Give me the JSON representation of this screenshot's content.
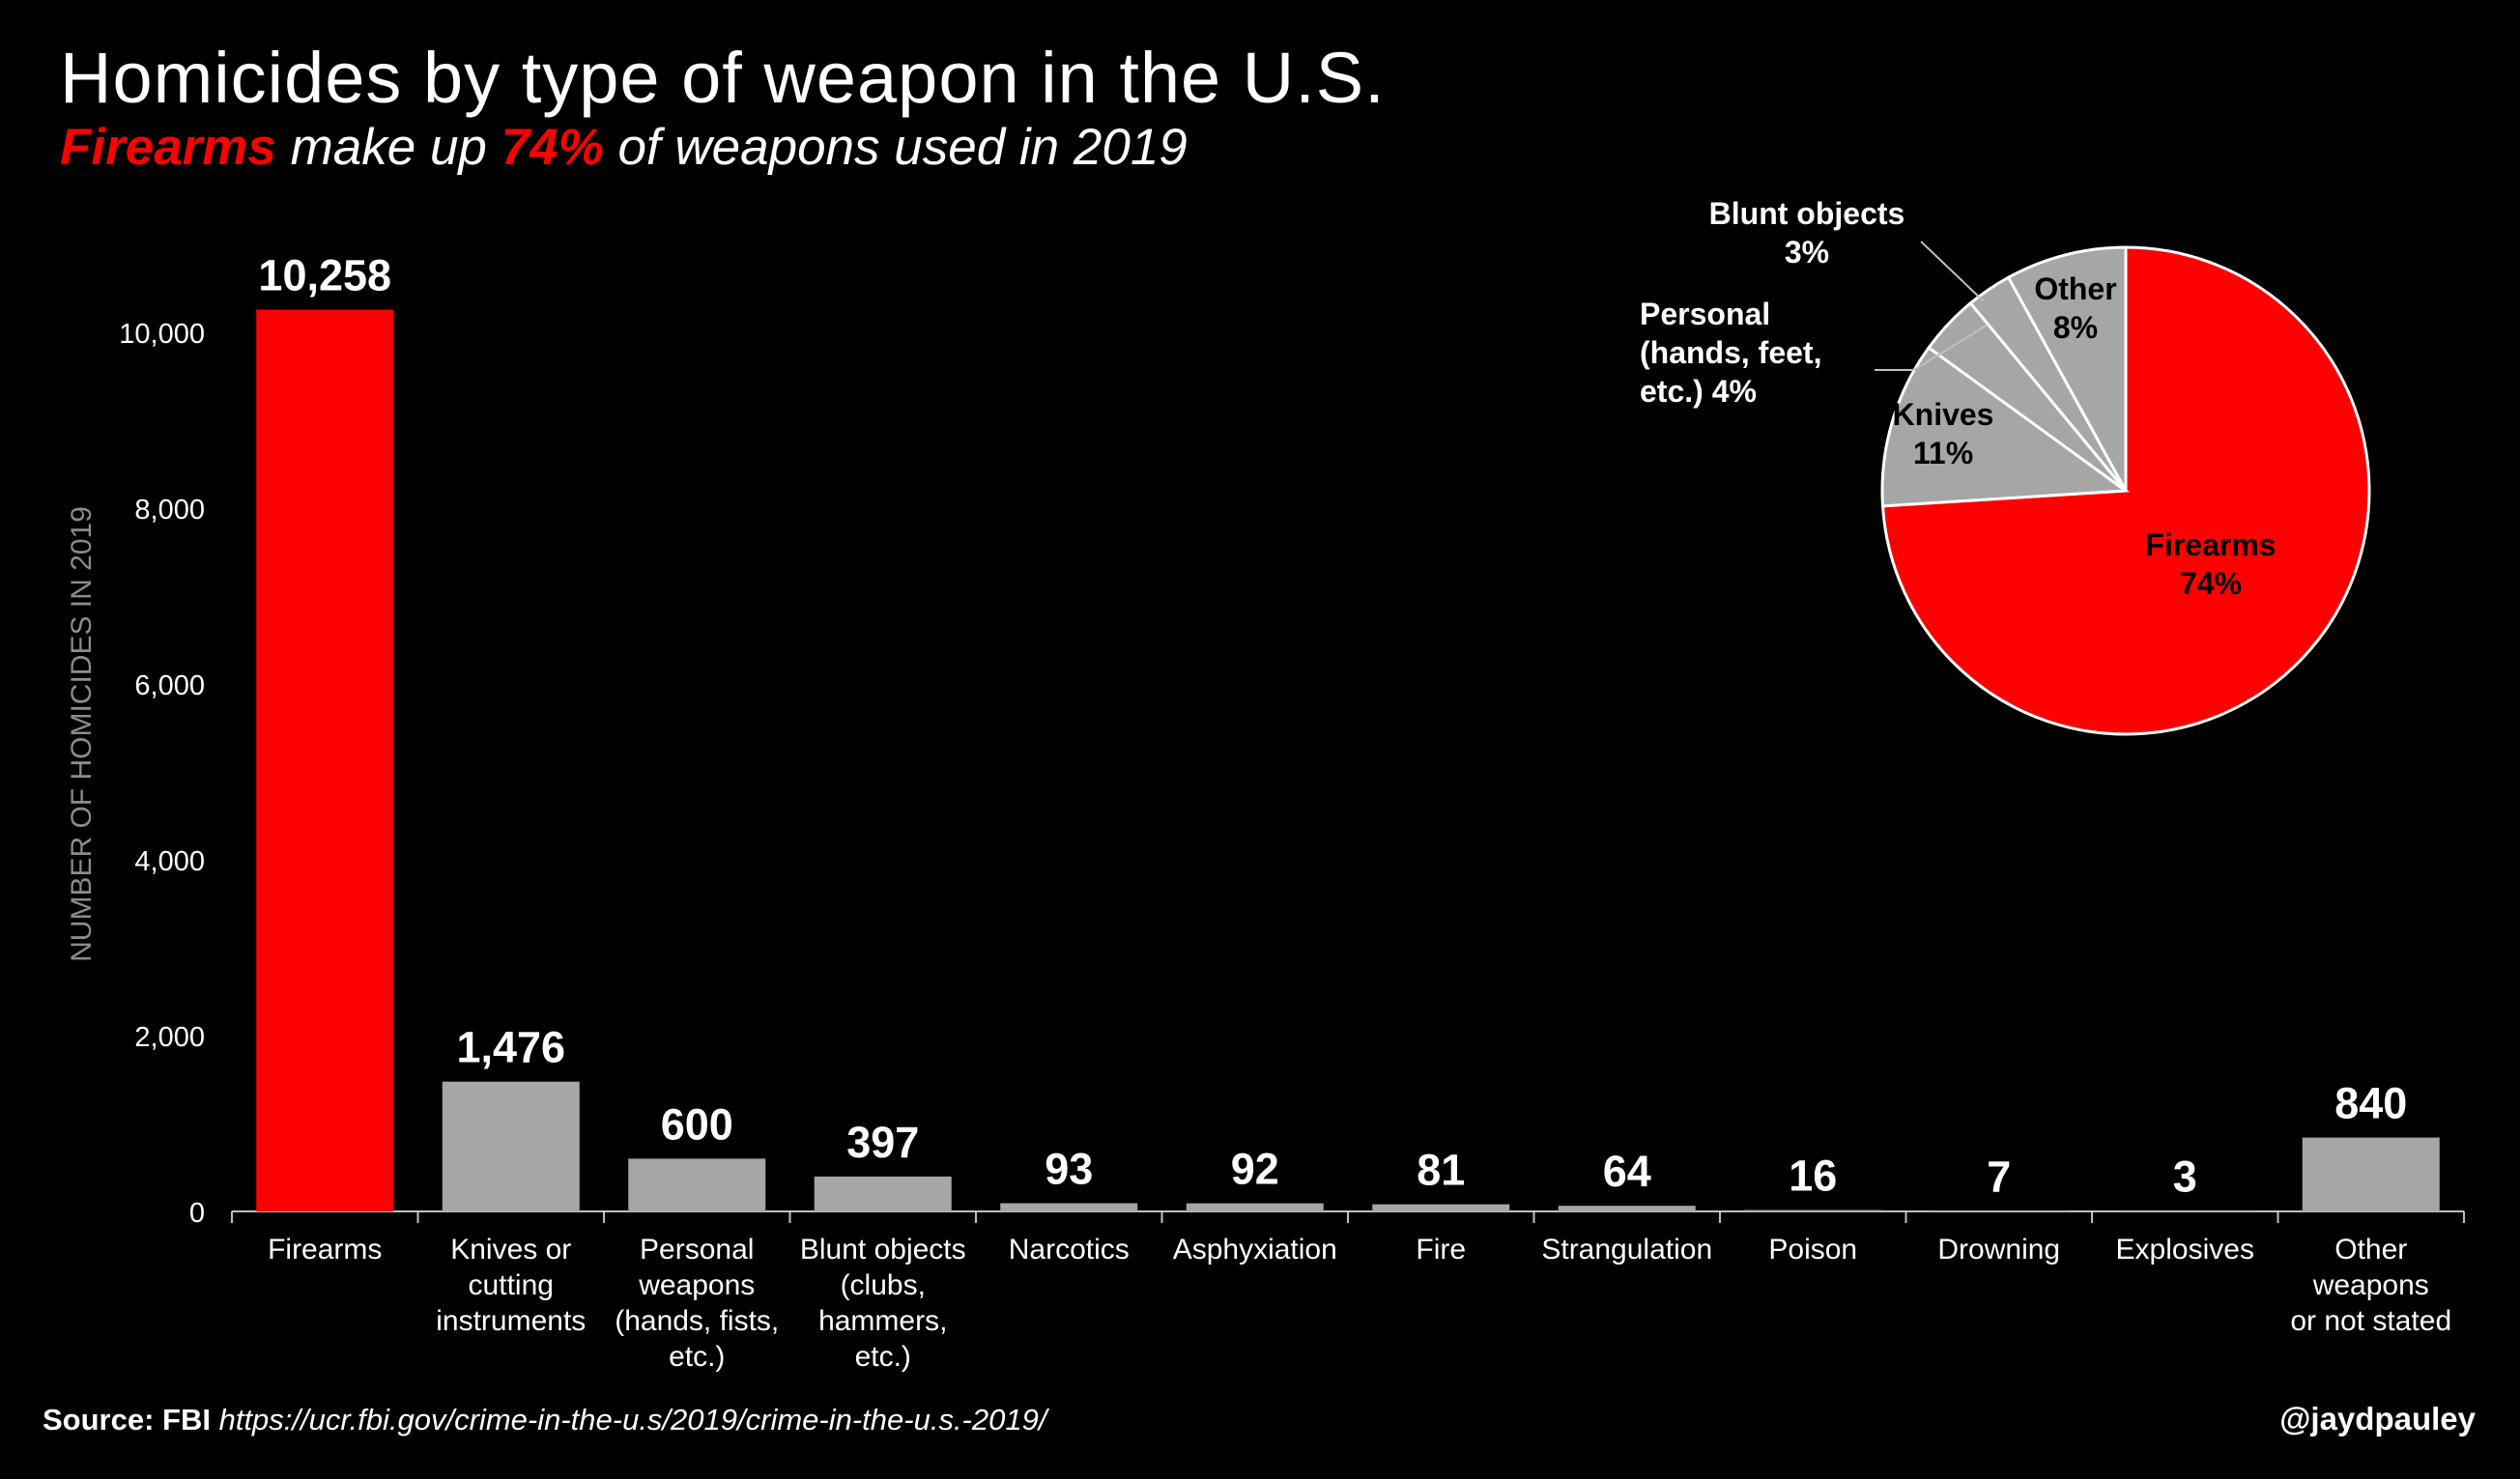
{
  "header": {
    "title": "Homicides by type of weapon in the U.S.",
    "subtitle_highlight_1": "Firearms",
    "subtitle_text_1": " make up ",
    "subtitle_highlight_2": "74%",
    "subtitle_text_2": " of weapons used in 2019"
  },
  "footer": {
    "source_label": "Source: FBI",
    "source_url": "https://ucr.fbi.gov/crime-in-the-u.s/2019/crime-in-the-u.s.-2019/",
    "handle": "@jaydpauley"
  },
  "colors": {
    "accent": "#ff0000",
    "bar": "#a6a6a6",
    "background": "#000000",
    "axis_text": "#ffffff",
    "ylabel": "#8c8c8c"
  },
  "chart_data": [
    {
      "type": "bar",
      "ylabel": "NUMBER OF HOMICIDES IN 2019",
      "ylim": [
        0,
        10000
      ],
      "yticks": [
        0,
        2000,
        4000,
        6000,
        8000,
        10000
      ],
      "ytick_labels": [
        "0",
        "2,000",
        "4,000",
        "6,000",
        "8,000",
        "10,000"
      ],
      "grid": false,
      "categories": [
        [
          "Firearms"
        ],
        [
          "Knives or",
          "cutting",
          "instruments"
        ],
        [
          "Personal",
          "weapons",
          "(hands, fists,",
          "etc.)"
        ],
        [
          "Blunt objects",
          "(clubs,",
          "hammers,",
          "etc.)"
        ],
        [
          "Narcotics"
        ],
        [
          "Asphyxiation"
        ],
        [
          "Fire"
        ],
        [
          "Strangulation"
        ],
        [
          "Poison"
        ],
        [
          "Drowning"
        ],
        [
          "Explosives"
        ],
        [
          "Other",
          "weapons",
          "or not stated"
        ]
      ],
      "values": [
        10258,
        1476,
        600,
        397,
        93,
        92,
        81,
        64,
        16,
        7,
        3,
        840
      ],
      "value_labels": [
        "10,258",
        "1,476",
        "600",
        "397",
        "93",
        "92",
        "81",
        "64",
        "16",
        "7",
        "3",
        "840"
      ],
      "highlight_index": 0
    },
    {
      "type": "pie",
      "slices": [
        {
          "label": [
            "Firearms",
            "74%"
          ],
          "value": 74,
          "color": "#ff0000",
          "label_color": "#000000"
        },
        {
          "label": [
            "Knives",
            "11%"
          ],
          "value": 11,
          "color": "#a6a6a6",
          "label_color": "#000000"
        },
        {
          "label": [
            "Personal",
            "(hands, feet,",
            "etc.) 4%"
          ],
          "value": 4,
          "color": "#a6a6a6",
          "label_color": "#ffffff",
          "callout": true
        },
        {
          "label": [
            "Blunt objects",
            "3%"
          ],
          "value": 3,
          "color": "#a6a6a6",
          "label_color": "#ffffff",
          "callout": true
        },
        {
          "label": [
            "Other",
            "8%"
          ],
          "value": 8,
          "color": "#a6a6a6",
          "label_color": "#000000"
        }
      ]
    }
  ]
}
